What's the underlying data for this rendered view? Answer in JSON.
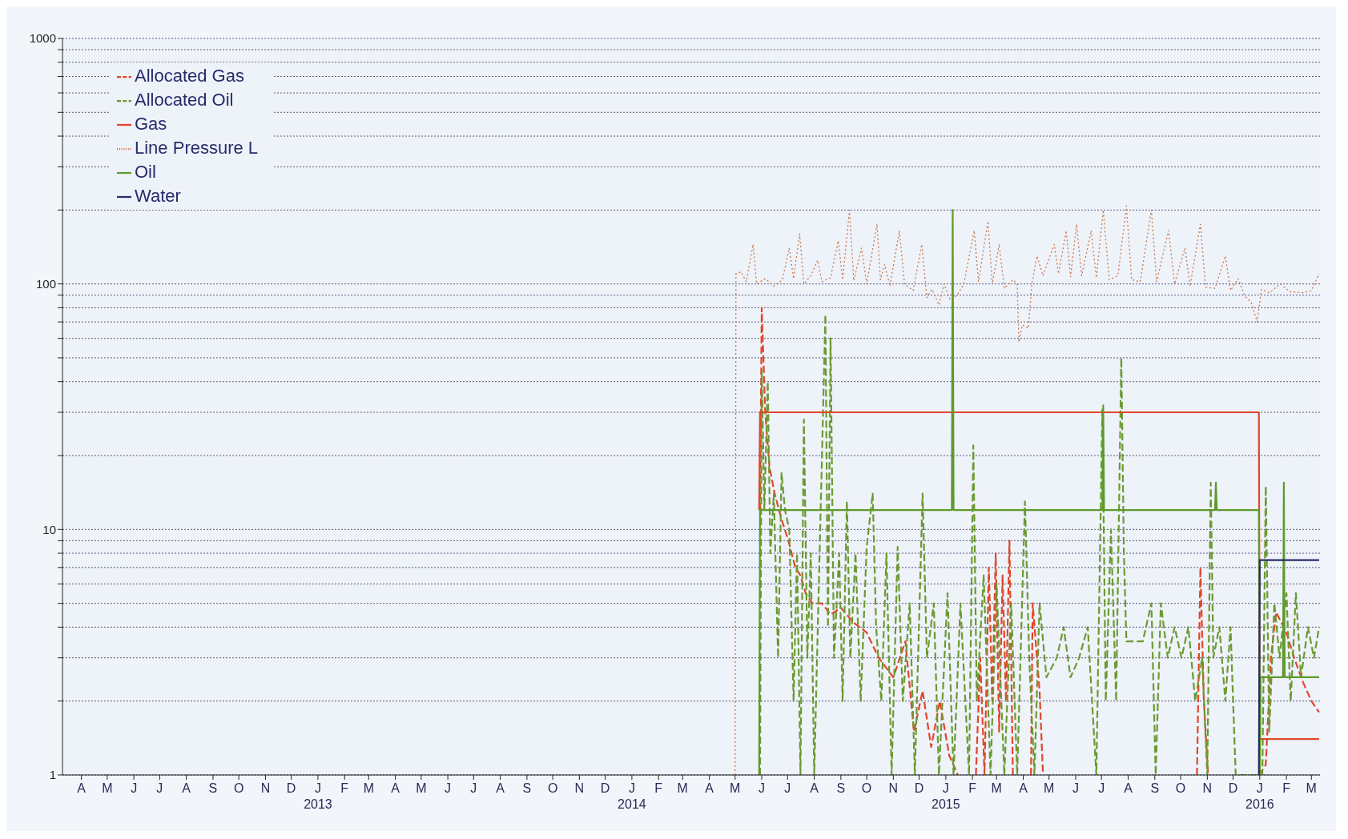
{
  "chart_data": {
    "type": "line",
    "log": true,
    "grid": "y",
    "legend": "top left",
    "xlim": [
      "2012-03-10",
      "2016-03-11"
    ],
    "xticks": [
      {
        "value": "2012-04",
        "label": "A"
      },
      {
        "value": "2012-05",
        "label": "M"
      },
      {
        "value": "2012-06",
        "label": "J"
      },
      {
        "value": "2012-07",
        "label": "J"
      },
      {
        "value": "2012-08",
        "label": "A"
      },
      {
        "value": "2012-09",
        "label": "S"
      },
      {
        "value": "2012-10",
        "label": "O"
      },
      {
        "value": "2012-11",
        "label": "N"
      },
      {
        "value": "2012-12",
        "label": "D"
      },
      {
        "value": "2013-01",
        "label": "J\n2013"
      },
      {
        "value": "2013-02",
        "label": "F"
      },
      {
        "value": "2013-03",
        "label": "M"
      },
      {
        "value": "2013-04",
        "label": "A"
      },
      {
        "value": "2013-05",
        "label": "M"
      },
      {
        "value": "2013-06",
        "label": "J"
      },
      {
        "value": "2013-07",
        "label": "J"
      },
      {
        "value": "2013-08",
        "label": "A"
      },
      {
        "value": "2013-09",
        "label": "S"
      },
      {
        "value": "2013-10",
        "label": "O"
      },
      {
        "value": "2013-11",
        "label": "N"
      },
      {
        "value": "2013-12",
        "label": "D"
      },
      {
        "value": "2014-01",
        "label": "J\n2014"
      },
      {
        "value": "2014-02",
        "label": "F"
      },
      {
        "value": "2014-03",
        "label": "M"
      },
      {
        "value": "2014-04",
        "label": "A"
      },
      {
        "value": "2014-05",
        "label": "M"
      },
      {
        "value": "2014-06",
        "label": "J"
      },
      {
        "value": "2014-07",
        "label": "J"
      },
      {
        "value": "2014-08",
        "label": "A"
      },
      {
        "value": "2014-09",
        "label": "S"
      },
      {
        "value": "2014-10",
        "label": "O"
      },
      {
        "value": "2014-11",
        "label": "N"
      },
      {
        "value": "2014-12",
        "label": "D"
      },
      {
        "value": "2015-01",
        "label": "J\n2015"
      },
      {
        "value": "2015-02",
        "label": "F"
      },
      {
        "value": "2015-03",
        "label": "M"
      },
      {
        "value": "2015-04",
        "label": "A"
      },
      {
        "value": "2015-05",
        "label": "M"
      },
      {
        "value": "2015-06",
        "label": "J"
      },
      {
        "value": "2015-07",
        "label": "J"
      },
      {
        "value": "2015-08",
        "label": "A"
      },
      {
        "value": "2015-09",
        "label": "S"
      },
      {
        "value": "2015-10",
        "label": "O"
      },
      {
        "value": "2015-11",
        "label": "N"
      },
      {
        "value": "2015-12",
        "label": "D"
      },
      {
        "value": "2016-01",
        "label": "J\n2016"
      },
      {
        "value": "2016-02",
        "label": "F"
      },
      {
        "value": "2016-03",
        "label": "M"
      }
    ],
    "ylim": [
      1,
      1000
    ],
    "yticks": [
      1,
      {
        "value": 2,
        "label": null
      },
      {
        "value": 3,
        "label": null
      },
      {
        "value": 4,
        "label": null
      },
      {
        "value": 5,
        "label": null
      },
      {
        "value": 6,
        "label": null
      },
      {
        "value": 7,
        "label": null
      },
      {
        "value": 8,
        "label": null
      },
      {
        "value": 9,
        "label": null
      },
      10,
      {
        "value": 20,
        "label": null
      },
      {
        "value": 30,
        "label": null
      },
      {
        "value": 40,
        "label": null
      },
      {
        "value": 50,
        "label": null
      },
      {
        "value": 60,
        "label": null
      },
      {
        "value": 70,
        "label": null
      },
      {
        "value": 80,
        "label": null
      },
      {
        "value": 90,
        "label": null
      },
      100,
      {
        "value": 200,
        "label": null
      },
      {
        "value": 300,
        "label": null
      },
      {
        "value": 400,
        "label": null
      },
      {
        "value": 500,
        "label": null
      },
      {
        "value": 600,
        "label": null
      },
      {
        "value": 700,
        "label": null
      },
      {
        "value": 800,
        "label": null
      },
      {
        "value": 900,
        "label": null
      },
      1000
    ],
    "series": [
      {
        "name": "Allocated Gas",
        "color": "#e0472a",
        "line_style": "dashed",
        "x": [
          "2014-05-30",
          "2014-06-01",
          "2014-06-05",
          "2014-06-10",
          "2014-06-16",
          "2014-06-24",
          "2014-07-02",
          "2014-07-10",
          "2014-07-16",
          "2014-07-22",
          "2014-07-30",
          "2014-08-10",
          "2014-08-20",
          "2014-09-01",
          "2014-09-15",
          "2014-10-01",
          "2014-10-15",
          "2014-11-01",
          "2014-11-15",
          "2014-11-25",
          "2014-12-05",
          "2014-12-15",
          "2014-12-25",
          "2015-01-05",
          "2015-01-15",
          "2015-01-25",
          "2015-02-05",
          "2015-02-10",
          "2015-02-15",
          "2015-02-20",
          "2015-02-24",
          "2015-02-28",
          "2015-03-04",
          "2015-03-08",
          "2015-03-12",
          "2015-03-16",
          "2015-03-20",
          "2015-03-24",
          "2015-04-10",
          "2015-04-12",
          "2015-04-20",
          "2015-04-24",
          "2015-04-26",
          "2015-10-20",
          "2015-10-24",
          "2015-10-28",
          "2015-11-02",
          "2015-11-04",
          "2015-12-31",
          "2016-01-08",
          "2016-01-14",
          "2016-01-20",
          "2016-02-01",
          "2016-02-10",
          "2016-02-20",
          "2016-03-01",
          "2016-03-10"
        ],
        "values": [
          12,
          80,
          30,
          18,
          14,
          11,
          9,
          7,
          6.5,
          5.5,
          5,
          5,
          4.5,
          4.8,
          4.2,
          3.8,
          3,
          2.5,
          3.5,
          1.5,
          2.2,
          1.3,
          2,
          1.2,
          1,
          null,
          1,
          3,
          1,
          7,
          2,
          8,
          1.5,
          6.5,
          2,
          9,
          1,
          null,
          1,
          5,
          2.2,
          1,
          null,
          1,
          7,
          2,
          1,
          null,
          1,
          1.1,
          3,
          4.6,
          3.8,
          3,
          2.4,
          2,
          1.8
        ]
      },
      {
        "name": "Allocated Oil",
        "color": "#6b9a32",
        "line_style": "dashed",
        "x": [
          "2014-05-30",
          "2014-06-01",
          "2014-06-04",
          "2014-06-08",
          "2014-06-11",
          "2014-06-15",
          "2014-06-20",
          "2014-06-24",
          "2014-06-28",
          "2014-07-03",
          "2014-07-08",
          "2014-07-12",
          "2014-07-16",
          "2014-07-20",
          "2014-07-24",
          "2014-07-28",
          "2014-08-01",
          "2014-08-14",
          "2014-08-17",
          "2014-08-20",
          "2014-08-24",
          "2014-08-30",
          "2014-09-03",
          "2014-09-08",
          "2014-09-12",
          "2014-09-18",
          "2014-09-24",
          "2014-10-01",
          "2014-10-08",
          "2014-10-12",
          "2014-10-18",
          "2014-10-24",
          "2014-10-30",
          "2014-11-06",
          "2014-11-12",
          "2014-11-20",
          "2014-11-26",
          "2014-12-05",
          "2014-12-10",
          "2014-12-18",
          "2014-12-24",
          "2015-01-03",
          "2015-01-10",
          "2015-01-18",
          "2015-01-28",
          "2015-02-02",
          "2015-02-06",
          "2015-02-14",
          "2015-02-22",
          "2015-03-01",
          "2015-03-10",
          "2015-03-18",
          "2015-03-25",
          "2015-04-03",
          "2015-04-08",
          "2015-04-14",
          "2015-04-20",
          "2015-04-28",
          "2015-05-10",
          "2015-05-18",
          "2015-05-26",
          "2015-06-05",
          "2015-06-15",
          "2015-06-25",
          "2015-07-02",
          "2015-07-06",
          "2015-07-12",
          "2015-07-18",
          "2015-07-24",
          "2015-07-27",
          "2015-07-30",
          "2015-08-08",
          "2015-08-18",
          "2015-08-28",
          "2015-09-02",
          "2015-09-08",
          "2015-09-16",
          "2015-09-24",
          "2015-10-02",
          "2015-10-10",
          "2015-10-18",
          "2015-10-26",
          "2015-11-01",
          "2015-11-05",
          "2015-11-08",
          "2015-11-15",
          "2015-11-22",
          "2015-11-28",
          "2015-12-04",
          "2016-01-04",
          "2016-01-08",
          "2016-01-12",
          "2016-01-18",
          "2016-01-24",
          "2016-02-01",
          "2016-02-06",
          "2016-02-12",
          "2016-02-18",
          "2016-02-26",
          "2016-03-04",
          "2016-03-10"
        ],
        "values": [
          1,
          45,
          12,
          40,
          8,
          14,
          3,
          17,
          12,
          10,
          2,
          8,
          1,
          28,
          3,
          8,
          1,
          75,
          4,
          60,
          3,
          8,
          2,
          13,
          3,
          8,
          2,
          8.5,
          14,
          4,
          2,
          8,
          1,
          8.5,
          2,
          5,
          1,
          14,
          3,
          5,
          1,
          5.5,
          1,
          5,
          1,
          22,
          2,
          6.5,
          1,
          6,
          1,
          5,
          1,
          13,
          3,
          1,
          5,
          2.5,
          3,
          4,
          2.5,
          3,
          4,
          1,
          31,
          2,
          10,
          2,
          50,
          8,
          3.5,
          3.5,
          3.5,
          5,
          1,
          5,
          3,
          4,
          3,
          4,
          2,
          3,
          1,
          15.5,
          3,
          4,
          2,
          4,
          1,
          1,
          15,
          1.5,
          5,
          3,
          5.5,
          2,
          5.5,
          2.5,
          4,
          3,
          4
        ]
      },
      {
        "name": "Gas",
        "color": "#e0472a",
        "line_style": "solid",
        "x": [
          "2014-05-29",
          "2014-05-30",
          "2015-12-31",
          "2016-01-01",
          "2016-03-10"
        ],
        "values": [
          12,
          30,
          30,
          1.4,
          1.4
        ]
      },
      {
        "name": "Line Pressure L",
        "color": "#c8784e",
        "line_style": "dotted",
        "x": [
          "2014-05-01",
          "2014-05-02",
          "2014-05-08",
          "2014-05-14",
          "2014-05-22",
          "2014-05-26",
          "2014-06-05",
          "2014-06-15",
          "2014-06-25",
          "2014-07-03",
          "2014-07-08",
          "2014-07-15",
          "2014-07-20",
          "2014-07-28",
          "2014-08-05",
          "2014-08-10",
          "2014-08-20",
          "2014-08-29",
          "2014-09-03",
          "2014-09-11",
          "2014-09-16",
          "2014-09-25",
          "2014-10-01",
          "2014-10-13",
          "2014-10-17",
          "2014-10-22",
          "2014-10-28",
          "2014-11-08",
          "2014-11-14",
          "2014-11-24",
          "2014-12-04",
          "2014-12-10",
          "2014-12-16",
          "2014-12-24",
          "2014-12-30",
          "2015-01-06",
          "2015-01-14",
          "2015-01-22",
          "2015-02-03",
          "2015-02-08",
          "2015-02-19",
          "2015-02-24",
          "2015-03-04",
          "2015-03-10",
          "2015-03-20",
          "2015-03-25",
          "2015-03-27",
          "2015-03-31",
          "2015-04-07",
          "2015-04-11",
          "2015-04-17",
          "2015-04-24",
          "2015-05-07",
          "2015-05-12",
          "2015-05-21",
          "2015-05-26",
          "2015-06-02",
          "2015-06-08",
          "2015-06-19",
          "2015-06-25",
          "2015-07-03",
          "2015-07-10",
          "2015-07-20",
          "2015-07-30",
          "2015-08-05",
          "2015-08-15",
          "2015-08-28",
          "2015-09-03",
          "2015-09-17",
          "2015-09-24",
          "2015-10-06",
          "2015-10-12",
          "2015-10-24",
          "2015-10-30",
          "2015-11-10",
          "2015-11-22",
          "2015-11-28",
          "2015-12-07",
          "2015-12-14",
          "2015-12-22",
          "2015-12-29",
          "2016-01-03",
          "2016-01-12",
          "2016-01-25",
          "2016-02-05",
          "2016-02-20",
          "2016-03-01",
          "2016-03-10"
        ],
        "values": [
          1,
          110,
          112,
          102,
          145,
          100,
          105,
          98,
          104,
          140,
          105,
          160,
          100,
          108,
          125,
          102,
          106,
          150,
          104,
          200,
          103,
          140,
          100,
          175,
          104,
          120,
          98,
          165,
          100,
          94,
          145,
          88,
          95,
          82,
          100,
          86,
          90,
          100,
          165,
          102,
          180,
          100,
          145,
          96,
          104,
          100,
          58,
          68,
          66,
          100,
          130,
          108,
          145,
          110,
          165,
          107,
          175,
          108,
          165,
          106,
          200,
          104,
          108,
          208,
          104,
          102,
          200,
          102,
          165,
          100,
          140,
          98,
          175,
          97,
          96,
          130,
          94,
          105,
          90,
          84,
          70,
          95,
          92,
          100,
          93,
          92,
          94,
          110
        ]
      },
      {
        "name": "Oil",
        "color": "#5e9a2c",
        "line_style": "solid",
        "x": [
          "2014-05-29",
          "2014-05-30",
          "2015-01-08",
          "2015-01-09",
          "2015-01-10",
          "2015-07-02",
          "2015-07-03",
          "2015-07-04",
          "2015-11-10",
          "2015-11-11",
          "2015-11-12",
          "2015-12-31",
          "2016-01-01",
          "2016-01-02",
          "2016-01-28",
          "2016-01-29",
          "2016-01-30",
          "2016-03-10"
        ],
        "values": [
          1,
          12,
          12,
          200,
          12,
          12,
          32,
          12,
          12,
          15.5,
          12,
          12,
          1,
          2.5,
          2.5,
          15.5,
          2.5,
          2.5
        ]
      },
      {
        "name": "Water",
        "color": "#2b2b66",
        "line_style": "solid",
        "x": [
          "2015-12-31",
          "2016-01-01",
          "2016-03-10"
        ],
        "values": [
          1,
          7.5,
          7.5
        ]
      }
    ]
  }
}
